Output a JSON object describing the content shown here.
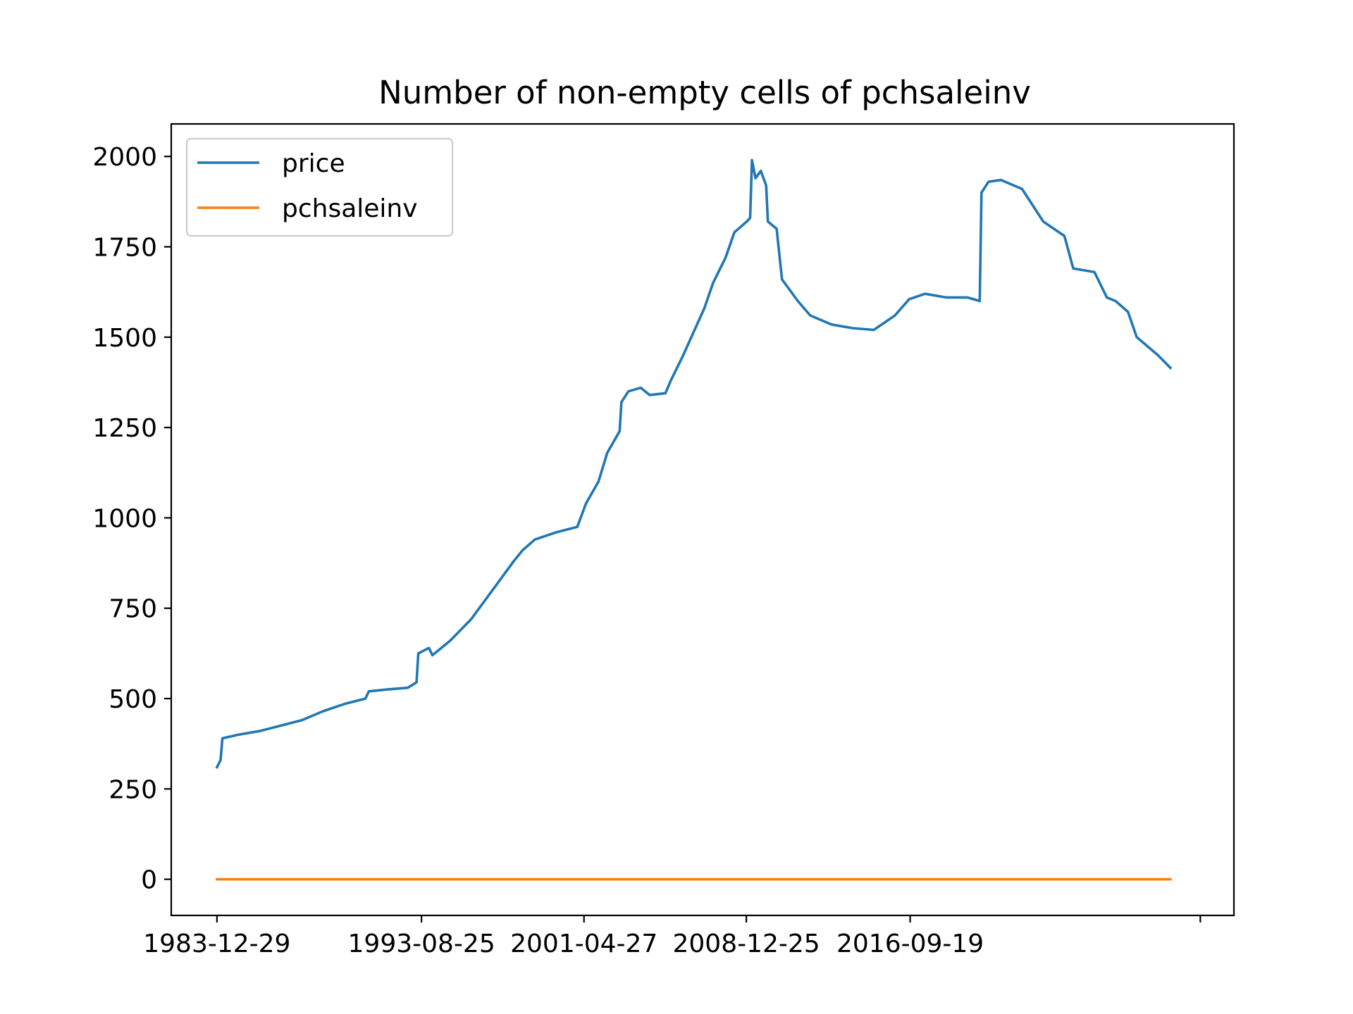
{
  "chart_data": {
    "type": "line",
    "title": "Number of non-empty cells of pchsaleinv",
    "xlabel": "",
    "ylabel": "",
    "ylim": [
      -100,
      2090
    ],
    "yticks": [
      0,
      250,
      500,
      750,
      1000,
      1250,
      1500,
      1750,
      2000
    ],
    "xlim": [
      "1981-11-01",
      "2032-01-01"
    ],
    "xticks": [
      "1983-12-29",
      "1993-08-25",
      "2001-04-27",
      "2008-12-25",
      "2016-09-19",
      ""
    ],
    "xtick_positions": [
      "1983-12-29",
      "1993-08-25",
      "2001-04-27",
      "2008-12-25",
      "2016-09-19",
      "2030-06-01"
    ],
    "grid": false,
    "legend": {
      "position": "top-left"
    },
    "series": [
      {
        "name": "price",
        "color": "#1f77b4",
        "points": [
          [
            "1983-12-29",
            310
          ],
          [
            "1984-03-01",
            330
          ],
          [
            "1984-04-01",
            390
          ],
          [
            "1985-01-01",
            400
          ],
          [
            "1986-01-01",
            410
          ],
          [
            "1987-01-01",
            425
          ],
          [
            "1988-01-01",
            440
          ],
          [
            "1989-01-01",
            465
          ],
          [
            "1990-01-01",
            485
          ],
          [
            "1991-01-01",
            500
          ],
          [
            "1991-03-01",
            520
          ],
          [
            "1992-01-01",
            525
          ],
          [
            "1993-01-01",
            530
          ],
          [
            "1993-06-01",
            545
          ],
          [
            "1993-07-01",
            625
          ],
          [
            "1994-01-01",
            640
          ],
          [
            "1994-03-01",
            620
          ],
          [
            "1995-01-01",
            660
          ],
          [
            "1996-01-01",
            720
          ],
          [
            "1997-01-01",
            800
          ],
          [
            "1998-01-01",
            880
          ],
          [
            "1998-06-01",
            910
          ],
          [
            "1999-01-01",
            940
          ],
          [
            "2000-01-01",
            960
          ],
          [
            "2001-01-01",
            975
          ],
          [
            "2001-06-01",
            1040
          ],
          [
            "2002-01-01",
            1100
          ],
          [
            "2002-06-01",
            1180
          ],
          [
            "2003-01-01",
            1240
          ],
          [
            "2003-02-01",
            1320
          ],
          [
            "2003-06-01",
            1350
          ],
          [
            "2004-01-01",
            1360
          ],
          [
            "2004-06-01",
            1340
          ],
          [
            "2005-03-01",
            1345
          ],
          [
            "2005-06-01",
            1380
          ],
          [
            "2006-01-01",
            1450
          ],
          [
            "2007-01-01",
            1580
          ],
          [
            "2007-06-01",
            1650
          ],
          [
            "2008-01-01",
            1720
          ],
          [
            "2008-06-01",
            1790
          ],
          [
            "2009-01-01",
            1820
          ],
          [
            "2009-03-01",
            1830
          ],
          [
            "2009-04-01",
            1990
          ],
          [
            "2009-06-01",
            1940
          ],
          [
            "2009-09-01",
            1960
          ],
          [
            "2009-12-01",
            1920
          ],
          [
            "2010-01-01",
            1820
          ],
          [
            "2010-06-01",
            1800
          ],
          [
            "2010-09-01",
            1660
          ],
          [
            "2011-06-01",
            1600
          ],
          [
            "2012-01-01",
            1560
          ],
          [
            "2013-01-01",
            1535
          ],
          [
            "2014-01-01",
            1525
          ],
          [
            "2015-01-01",
            1520
          ],
          [
            "2016-01-01",
            1560
          ],
          [
            "2016-09-01",
            1605
          ],
          [
            "2017-06-01",
            1620
          ],
          [
            "2018-06-01",
            1610
          ],
          [
            "2019-06-01",
            1610
          ],
          [
            "2020-01-01",
            1600
          ],
          [
            "2020-02-01",
            1900
          ],
          [
            "2020-06-01",
            1930
          ],
          [
            "2021-01-01",
            1935
          ],
          [
            "2022-01-01",
            1910
          ],
          [
            "2023-01-01",
            1820
          ],
          [
            "2024-01-01",
            1780
          ],
          [
            "2024-06-01",
            1690
          ],
          [
            "2025-06-01",
            1680
          ],
          [
            "2026-01-01",
            1610
          ],
          [
            "2026-06-01",
            1600
          ],
          [
            "2027-01-01",
            1570
          ],
          [
            "2027-06-01",
            1500
          ],
          [
            "2028-06-01",
            1450
          ],
          [
            "2029-01-01",
            1415
          ]
        ]
      },
      {
        "name": "pchsaleinv",
        "color": "#ff7f0e",
        "points": [
          [
            "1983-12-29",
            0
          ],
          [
            "2029-01-01",
            0
          ]
        ]
      }
    ]
  }
}
